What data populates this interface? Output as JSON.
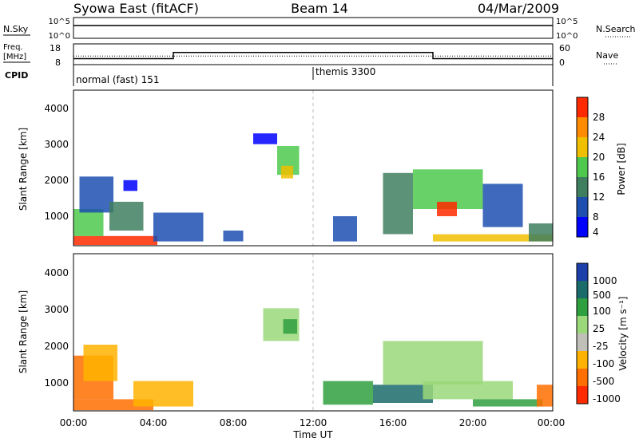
{
  "header": {
    "title_left": "Syowa East (fitACF)",
    "title_center": "Beam 14",
    "title_right": "04/Mar/2009"
  },
  "strips": {
    "nsky_label": "N.Sky",
    "nsky_ticks": [
      "10^5",
      "10^0"
    ],
    "nsearch_label": "N.Search",
    "nsearch_ticks": [
      "10^5",
      "10^0"
    ],
    "freq_label_1": "Freq.",
    "freq_label_2": "[MHz]",
    "freq_ticks": [
      "18",
      "8"
    ],
    "nave_label": "Nave",
    "nave_ticks": [
      "60",
      "0"
    ],
    "cpid_label": "CPID",
    "cpid_modes": [
      {
        "name": "normal (fast) 151",
        "start_hour": 0
      },
      {
        "name": "themis 3300",
        "start_hour": 12
      }
    ]
  },
  "panels": {
    "range_ticks": [
      "4000",
      "3000",
      "2000",
      "1000"
    ],
    "ylabel": "Slant Range [km]",
    "xlabel": "Time UT",
    "time_ticks": [
      "00:00",
      "04:00",
      "08:00",
      "12:00",
      "16:00",
      "20:00",
      "00:00"
    ],
    "power_label": "Power [dB]",
    "power_ticks": [
      "28",
      "24",
      "20",
      "16",
      "12",
      "8",
      "4"
    ],
    "velocity_label": "Velocity [m s⁻¹]",
    "velocity_ticks": [
      "1000",
      "500",
      "100",
      "25",
      "-25",
      "-100",
      "-500",
      "-1000"
    ]
  },
  "chart_data": [
    {
      "type": "line",
      "title": "",
      "series": [
        {
          "name": "N.Sky",
          "points": [
            [
              0,
              5
            ],
            [
              24,
              5
            ]
          ]
        },
        {
          "name": "N.Search",
          "points": [
            [
              0,
              5
            ],
            [
              24,
              5
            ]
          ]
        }
      ],
      "x_range_hours": [
        0,
        24
      ],
      "ylim": [
        0,
        5
      ],
      "y_scale": "log10"
    },
    {
      "type": "line",
      "title": "",
      "series": [
        {
          "name": "Freq. [MHz]",
          "points": [
            [
              0,
              10.5
            ],
            [
              5,
              10.5
            ],
            [
              5,
              14
            ],
            [
              18,
              14
            ],
            [
              18,
              10.5
            ],
            [
              24,
              10.5
            ]
          ]
        },
        {
          "name": "Nave",
          "points": [
            [
              0,
              24
            ],
            [
              24,
              24
            ]
          ]
        }
      ],
      "x_range_hours": [
        0,
        24
      ],
      "ylim_freq": [
        8,
        18
      ],
      "ylim_nave": [
        0,
        60
      ]
    },
    {
      "type": "heatmap",
      "title": "Power [dB]",
      "xlabel": "Time UT",
      "ylabel": "Slant Range [km]",
      "x_range_hours": [
        0,
        24
      ],
      "ylim": [
        180,
        4500
      ],
      "color_levels": [
        4,
        8,
        12,
        16,
        20,
        24,
        28
      ],
      "colors": [
        "#0000ff",
        "#1c4fb0",
        "#3f7f5f",
        "#4ec94e",
        "#f0c000",
        "#ff8c00",
        "#ff2a00"
      ],
      "regions": [
        {
          "t0": 0.0,
          "t1": 4.2,
          "r0": 200,
          "r1": 450,
          "level": 28
        },
        {
          "t0": 0.0,
          "t1": 1.5,
          "r0": 450,
          "r1": 1200,
          "level": 16
        },
        {
          "t0": 0.3,
          "t1": 2.0,
          "r0": 1100,
          "r1": 2100,
          "level": 8
        },
        {
          "t0": 1.8,
          "t1": 3.5,
          "r0": 600,
          "r1": 1400,
          "level": 12
        },
        {
          "t0": 2.5,
          "t1": 3.2,
          "r0": 1700,
          "r1": 2000,
          "level": 4
        },
        {
          "t0": 4.0,
          "t1": 6.5,
          "r0": 300,
          "r1": 1100,
          "level": 8
        },
        {
          "t0": 7.5,
          "t1": 8.5,
          "r0": 300,
          "r1": 600,
          "level": 8
        },
        {
          "t0": 9.0,
          "t1": 10.2,
          "r0": 3000,
          "r1": 3300,
          "level": 4
        },
        {
          "t0": 10.2,
          "t1": 11.3,
          "r0": 2150,
          "r1": 2950,
          "level": 16
        },
        {
          "t0": 10.4,
          "t1": 11.0,
          "r0": 2050,
          "r1": 2400,
          "level": 20
        },
        {
          "t0": 13.0,
          "t1": 14.2,
          "r0": 300,
          "r1": 1000,
          "level": 8
        },
        {
          "t0": 15.5,
          "t1": 17.0,
          "r0": 500,
          "r1": 2200,
          "level": 12
        },
        {
          "t0": 17.0,
          "t1": 20.5,
          "r0": 1200,
          "r1": 2300,
          "level": 16
        },
        {
          "t0": 18.2,
          "t1": 19.2,
          "r0": 1000,
          "r1": 1400,
          "level": 28
        },
        {
          "t0": 18.0,
          "t1": 24.0,
          "r0": 300,
          "r1": 500,
          "level": 20
        },
        {
          "t0": 20.5,
          "t1": 22.5,
          "r0": 700,
          "r1": 1900,
          "level": 8
        },
        {
          "t0": 22.8,
          "t1": 24.0,
          "r0": 300,
          "r1": 800,
          "level": 12
        }
      ]
    },
    {
      "type": "heatmap",
      "title": "Velocity [m s⁻¹]",
      "xlabel": "Time UT",
      "ylabel": "Slant Range [km]",
      "x_range_hours": [
        0,
        24
      ],
      "ylim": [
        180,
        4500
      ],
      "color_levels": [
        1000,
        500,
        100,
        25,
        -25,
        -100,
        -500,
        -1000
      ],
      "colors": [
        "#1c3faa",
        "#1c6b6b",
        "#2fa040",
        "#9ad87a",
        "#c0c0b8",
        "#ffb300",
        "#ff6e00",
        "#ff2a00"
      ],
      "regions": [
        {
          "t0": 0.0,
          "t1": 4.0,
          "r0": 200,
          "r1": 500,
          "level": -500
        },
        {
          "t0": 0.0,
          "t1": 2.0,
          "r0": 500,
          "r1": 1700,
          "level": -500
        },
        {
          "t0": 0.5,
          "t1": 2.2,
          "r0": 1000,
          "r1": 2000,
          "level": -100
        },
        {
          "t0": 3.0,
          "t1": 6.0,
          "r0": 300,
          "r1": 1000,
          "level": -100
        },
        {
          "t0": 9.5,
          "t1": 11.3,
          "r0": 2100,
          "r1": 3000,
          "level": 25
        },
        {
          "t0": 10.5,
          "t1": 11.2,
          "r0": 2300,
          "r1": 2700,
          "level": 100
        },
        {
          "t0": 12.5,
          "t1": 15.0,
          "r0": 350,
          "r1": 1000,
          "level": 100
        },
        {
          "t0": 15.0,
          "t1": 18.0,
          "r0": 400,
          "r1": 900,
          "level": 500
        },
        {
          "t0": 15.5,
          "t1": 20.5,
          "r0": 900,
          "r1": 2100,
          "level": 25
        },
        {
          "t0": 17.5,
          "t1": 22.0,
          "r0": 500,
          "r1": 1000,
          "level": 25
        },
        {
          "t0": 20.0,
          "t1": 23.5,
          "r0": 300,
          "r1": 500,
          "level": 100
        },
        {
          "t0": 23.2,
          "t1": 24.0,
          "r0": 300,
          "r1": 900,
          "level": -500
        }
      ]
    }
  ]
}
